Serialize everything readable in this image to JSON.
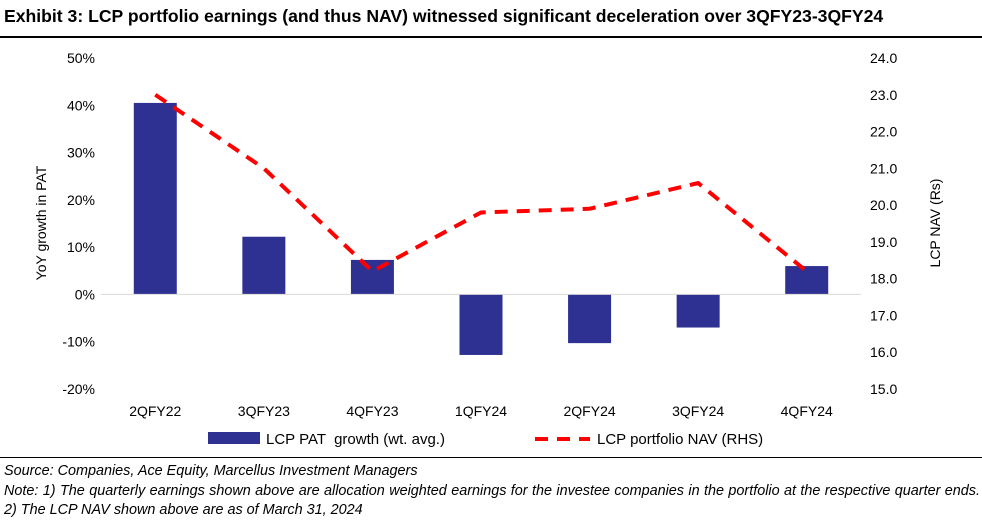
{
  "title": "Exhibit 3: LCP portfolio earnings (and thus NAV) witnessed significant deceleration over 3QFY23-3QFY24",
  "notes": {
    "source": "Source: Companies, Ace Equity, Marcellus Investment Managers",
    "note": "Note: 1) The quarterly earnings shown above are allocation weighted earnings for the investee companies in the portfolio at the respective quarter ends. 2) The LCP NAV shown above are as of March 31, 2024"
  },
  "colors": {
    "bar": "#2e3192",
    "line": "#ff0000",
    "axis": "#d9d9d9"
  },
  "chart_data": {
    "type": "bar",
    "categories": [
      "2QFY22",
      "3QFY23",
      "4QFY23",
      "1QFY24",
      "2QFY24",
      "3QFY24",
      "4QFY24"
    ],
    "series": [
      {
        "name": "LCP PAT  growth (wt. avg.)",
        "type": "bar",
        "axis": "left",
        "values": [
          40.5,
          12.2,
          7.3,
          -12.8,
          -10.3,
          -7.0,
          6.0
        ]
      },
      {
        "name": "LCP portfolio NAV (RHS)",
        "type": "line",
        "style": "dashed",
        "axis": "right",
        "values": [
          23.0,
          21.0,
          18.2,
          19.8,
          19.9,
          20.6,
          18.2
        ]
      }
    ],
    "ylabel": "YoY growth in PAT",
    "y2label": "LCP NAV (Rs)",
    "ylim": [
      -20,
      50
    ],
    "y2lim": [
      15,
      24
    ],
    "yticks": [
      "50%",
      "40%",
      "30%",
      "20%",
      "10%",
      "0%",
      "-10%",
      "-20%"
    ],
    "y2ticks": [
      "24.0",
      "23.0",
      "22.0",
      "21.0",
      "20.0",
      "19.0",
      "18.0",
      "17.0",
      "16.0",
      "15.0"
    ],
    "grid": false,
    "legend": "bottom"
  }
}
